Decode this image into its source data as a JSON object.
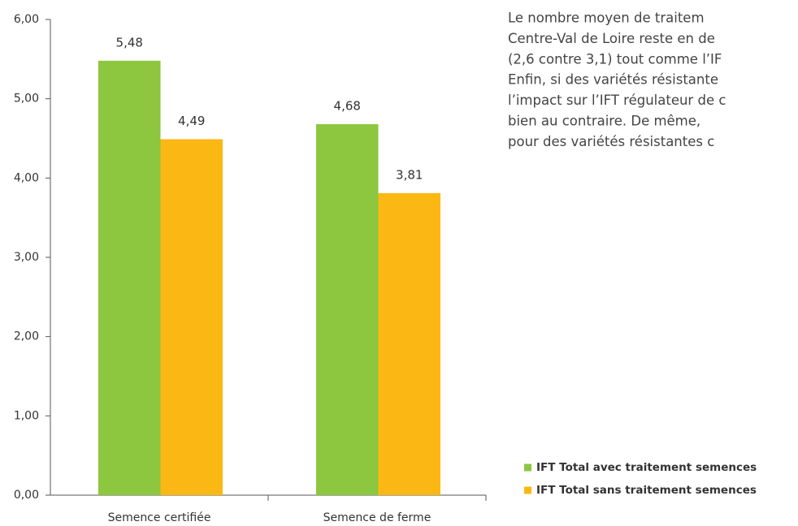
{
  "chart_data": {
    "type": "bar",
    "categories": [
      "Semence certifiée",
      "Semence de ferme"
    ],
    "series": [
      {
        "name": "IFT Total avec traitement semences",
        "color": "#8dc63f",
        "values": [
          5.48,
          4.68
        ],
        "value_labels": [
          "5,48",
          "4,68"
        ]
      },
      {
        "name": "IFT Total sans traitement semences",
        "color": "#fbb814",
        "values": [
          4.49,
          3.81
        ],
        "value_labels": [
          "4,49",
          "3,81"
        ]
      }
    ],
    "ylim": [
      0,
      6
    ],
    "yticks": [
      {
        "value": 0,
        "label": "0,00"
      },
      {
        "value": 1,
        "label": "1,00"
      },
      {
        "value": 2,
        "label": "2,00"
      },
      {
        "value": 3,
        "label": "3,00"
      },
      {
        "value": 4,
        "label": "4,00"
      },
      {
        "value": 5,
        "label": "5,00"
      },
      {
        "value": 6,
        "label": "6,00"
      }
    ],
    "grid": false,
    "legend": "bottom-right",
    "annotations": [
      "Le nombre moyen de traitem",
      "Centre-Val de Loire reste en de",
      "(2,6 contre 3,1) tout comme l’IF",
      "Enfin, si des variétés résistante",
      "l’impact sur l’IFT régulateur de c",
      "bien au contraire. De même,",
      "pour des variétés résistantes c"
    ]
  }
}
